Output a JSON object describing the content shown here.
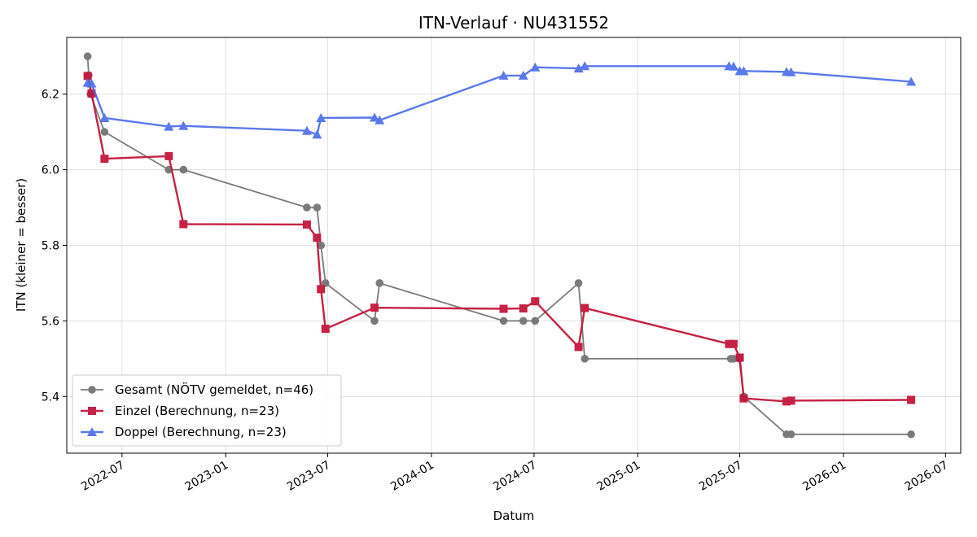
{
  "chart_data": {
    "type": "line",
    "title": "ITN-Verlauf · NU431552",
    "xlabel": "Datum",
    "ylabel": "ITN  (kleiner = besser)",
    "xlim": [
      "2022-03-25",
      "2026-07-28"
    ],
    "ylim": [
      5.25,
      6.35
    ],
    "x_ticks": [
      "2022-07",
      "2023-01",
      "2023-07",
      "2024-01",
      "2024-07",
      "2025-01",
      "2025-07",
      "2026-01",
      "2026-07"
    ],
    "y_ticks": [
      "5.4",
      "5.6",
      "5.8",
      "6.0",
      "6.2"
    ],
    "grid": true,
    "legend_position": "lower-left",
    "series": [
      {
        "name": "Gesamt (NÖTV gemeldet, n=46)",
        "color": "#444444",
        "marker": "circle",
        "points": [
          [
            "2022-05-01",
            6.3
          ],
          [
            "2022-05-03",
            6.25
          ],
          [
            "2022-05-06",
            6.2
          ],
          [
            "2022-05-31",
            6.1
          ],
          [
            "2022-09-22",
            6.0
          ],
          [
            "2022-10-18",
            6.0
          ],
          [
            "2023-05-25",
            5.9
          ],
          [
            "2023-06-12",
            5.9
          ],
          [
            "2023-06-19",
            5.8
          ],
          [
            "2023-06-27",
            5.7
          ],
          [
            "2023-09-22",
            5.6
          ],
          [
            "2023-10-01",
            5.7
          ],
          [
            "2024-05-08",
            5.6
          ],
          [
            "2024-06-12",
            5.6
          ],
          [
            "2024-07-03",
            5.6
          ],
          [
            "2024-09-18",
            5.7
          ],
          [
            "2024-09-29",
            5.5
          ],
          [
            "2025-06-15",
            5.5
          ],
          [
            "2025-06-20",
            5.5
          ],
          [
            "2025-06-30",
            5.5
          ],
          [
            "2025-07-08",
            5.4
          ],
          [
            "2025-09-22",
            5.3
          ],
          [
            "2025-09-30",
            5.3
          ],
          [
            "2026-05-01",
            5.3
          ]
        ]
      },
      {
        "name": "Einzel (Berechnung, n=23)",
        "color": "#c4173c",
        "marker": "square",
        "points": [
          [
            "2022-05-01",
            6.248
          ],
          [
            "2022-05-08",
            6.202
          ],
          [
            "2022-05-31",
            6.029
          ],
          [
            "2022-09-22",
            6.036
          ],
          [
            "2022-10-18",
            5.856
          ],
          [
            "2023-05-25",
            5.855
          ],
          [
            "2023-06-12",
            5.82
          ],
          [
            "2023-06-19",
            5.684
          ],
          [
            "2023-06-27",
            5.579
          ],
          [
            "2023-09-22",
            5.635
          ],
          [
            "2024-05-08",
            5.632
          ],
          [
            "2024-06-12",
            5.633
          ],
          [
            "2024-07-03",
            5.652
          ],
          [
            "2024-09-18",
            5.531
          ],
          [
            "2024-09-29",
            5.634
          ],
          [
            "2025-06-12",
            5.539
          ],
          [
            "2025-06-20",
            5.539
          ],
          [
            "2025-07-01",
            5.503
          ],
          [
            "2025-07-08",
            5.395
          ],
          [
            "2025-09-22",
            5.387
          ],
          [
            "2025-09-30",
            5.389
          ],
          [
            "2026-05-01",
            5.391
          ]
        ]
      },
      {
        "name": "Doppel (Berechnung, n=23)",
        "color": "#4a6bea",
        "marker": "triangle",
        "points": [
          [
            "2022-05-01",
            6.23
          ],
          [
            "2022-05-08",
            6.228
          ],
          [
            "2022-05-31",
            6.137
          ],
          [
            "2022-09-22",
            6.114
          ],
          [
            "2022-10-18",
            6.116
          ],
          [
            "2023-05-25",
            6.103
          ],
          [
            "2023-06-12",
            6.093
          ],
          [
            "2023-06-19",
            6.137
          ],
          [
            "2023-09-22",
            6.138
          ],
          [
            "2023-10-01",
            6.131
          ],
          [
            "2024-05-08",
            6.249
          ],
          [
            "2024-06-12",
            6.249
          ],
          [
            "2024-07-03",
            6.271
          ],
          [
            "2024-09-18",
            6.268
          ],
          [
            "2024-09-29",
            6.274
          ],
          [
            "2025-06-12",
            6.274
          ],
          [
            "2025-06-20",
            6.273
          ],
          [
            "2025-07-01",
            6.261
          ],
          [
            "2025-07-08",
            6.261
          ],
          [
            "2025-09-22",
            6.259
          ],
          [
            "2025-09-30",
            6.258
          ],
          [
            "2026-05-01",
            6.233
          ]
        ]
      }
    ]
  }
}
